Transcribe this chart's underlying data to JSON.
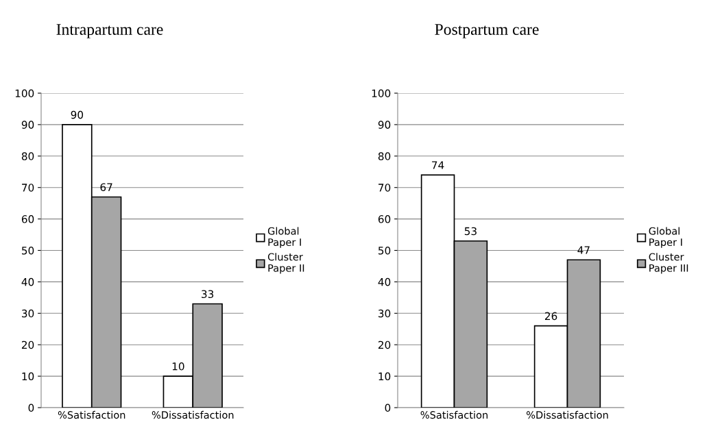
{
  "chart_data": [
    {
      "type": "bar",
      "title": "Intrapartum care",
      "categories": [
        "%Satisfaction",
        "%Dissatisfaction"
      ],
      "series": [
        {
          "name": "Global\nPaper I",
          "color": "#ffffff",
          "values": [
            90,
            10
          ]
        },
        {
          "name": "Cluster\nPaper II",
          "color": "#a6a6a6",
          "values": [
            67,
            33
          ]
        }
      ],
      "ylim": [
        0,
        100
      ],
      "yticks": [
        0,
        10,
        20,
        30,
        40,
        50,
        60,
        70,
        80,
        90,
        100
      ],
      "grid": "y",
      "legend": "right",
      "data_labels": true
    },
    {
      "type": "bar",
      "title": "Postpartum care",
      "categories": [
        "%Satisfaction",
        "%Dissatisfaction"
      ],
      "series": [
        {
          "name": "Global\nPaper I",
          "color": "#ffffff",
          "values": [
            74,
            26
          ]
        },
        {
          "name": "Cluster\nPaper III",
          "color": "#a6a6a6",
          "values": [
            53,
            47
          ]
        }
      ],
      "ylim": [
        0,
        100
      ],
      "yticks": [
        0,
        10,
        20,
        30,
        40,
        50,
        60,
        70,
        80,
        90,
        100
      ],
      "grid": "y",
      "legend": "right",
      "data_labels": true
    }
  ]
}
